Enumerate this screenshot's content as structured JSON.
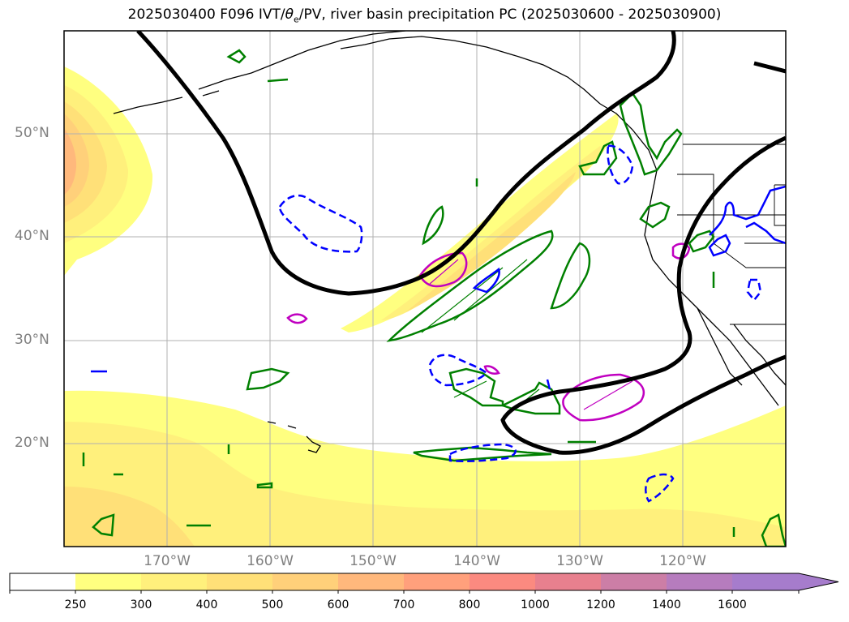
{
  "title": {
    "prefix": "2025030400 F096 IVT/",
    "theta": "θ",
    "theta_sub": "e",
    "suffix": "/PV, river basin precipitation PC (2025030600 - 2025030900)"
  },
  "map": {
    "projection": "PlateCarree",
    "lon_range": [
      -180,
      -110
    ],
    "lat_range": [
      10,
      60
    ],
    "lat_labels": [
      "50°N",
      "40°N",
      "30°N",
      "20°N"
    ],
    "lon_labels": [
      "170°W",
      "160°W",
      "150°W",
      "140°W",
      "130°W",
      "120°W"
    ],
    "gridlines": true,
    "contour_colors": {
      "thick_contour": "#000000",
      "green": "#008000",
      "blue": "#0000ff",
      "magenta": "#c000c0"
    }
  },
  "colorbar": {
    "labels": [
      "250",
      "300",
      "400",
      "500",
      "600",
      "700",
      "800",
      "1000",
      "1200",
      "1400",
      "1600"
    ],
    "colors": [
      "#ffffff",
      "#ffff80",
      "#fff07c",
      "#ffe078",
      "#ffd07a",
      "#ffb87c",
      "#ffa07c",
      "#fb8a80",
      "#e8808e",
      "#cc7ea6",
      "#b67cbe",
      "#a67ccc"
    ],
    "extend": "max"
  }
}
